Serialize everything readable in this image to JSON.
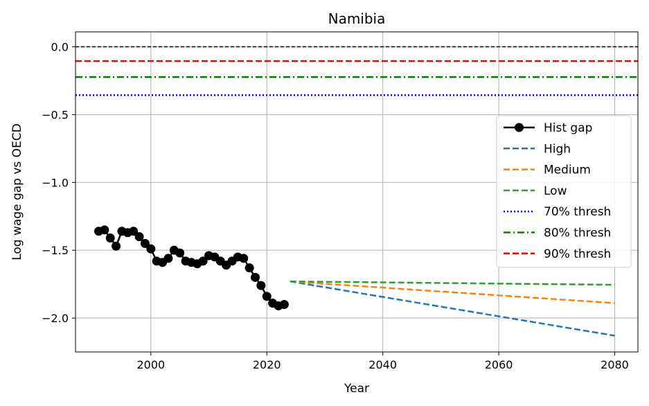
{
  "chart_data": {
    "type": "line",
    "title": "Namibia",
    "xlabel": "Year",
    "ylabel": "Log wage gap vs OECD",
    "xlim": [
      1987,
      2084
    ],
    "ylim": [
      -2.25,
      0.11
    ],
    "xticks": [
      2000,
      2020,
      2040,
      2060,
      2080
    ],
    "yticks": [
      0.0,
      -0.5,
      -1.0,
      -1.5,
      -2.0
    ],
    "xtick_labels": [
      "2000",
      "2020",
      "2040",
      "2060",
      "2080"
    ],
    "ytick_labels": [
      "0.0",
      "−0.5",
      "−1.0",
      "−1.5",
      "−2.0"
    ],
    "grid": true,
    "legend_position": "center-right",
    "legend": [
      {
        "label": "Hist gap",
        "color": "#000000",
        "style": "solid-marker"
      },
      {
        "label": "High",
        "color": "#1f77b4",
        "style": "dashed"
      },
      {
        "label": "Medium",
        "color": "#ff7f0e",
        "style": "dashed"
      },
      {
        "label": "Low",
        "color": "#2ca02c",
        "style": "dashed"
      },
      {
        "label": "70% thresh",
        "color": "#0000ff",
        "style": "dotted"
      },
      {
        "label": "80% thresh",
        "color": "#008000",
        "style": "dashdot"
      },
      {
        "label": "90% thresh",
        "color": "#ff0000",
        "style": "dashed"
      }
    ],
    "hlines": [
      {
        "y": 0.0,
        "color": "#000000",
        "style": "dashed-thin"
      },
      {
        "y": -0.105,
        "color": "#ff0000",
        "style": "dashed"
      },
      {
        "y": -0.223,
        "color": "#008000",
        "style": "dashdot"
      },
      {
        "y": -0.357,
        "color": "#0000ff",
        "style": "dotted"
      }
    ],
    "hist": {
      "x": [
        1991,
        1992,
        1993,
        1994,
        1995,
        1996,
        1997,
        1998,
        1999,
        2000,
        2001,
        2002,
        2003,
        2004,
        2005,
        2006,
        2007,
        2008,
        2009,
        2010,
        2011,
        2012,
        2013,
        2014,
        2015,
        2016,
        2017,
        2018,
        2019,
        2020,
        2021,
        2022,
        2023
      ],
      "y": [
        -1.36,
        -1.35,
        -1.41,
        -1.47,
        -1.36,
        -1.37,
        -1.36,
        -1.4,
        -1.45,
        -1.49,
        -1.58,
        -1.59,
        -1.56,
        -1.5,
        -1.52,
        -1.58,
        -1.59,
        -1.6,
        -1.58,
        -1.54,
        -1.55,
        -1.58,
        -1.61,
        -1.58,
        -1.55,
        -1.56,
        -1.63,
        -1.7,
        -1.76,
        -1.84,
        -1.89,
        -1.91,
        -1.9
      ]
    },
    "series": [
      {
        "name": "High",
        "color": "#1f77b4",
        "x": [
          2024,
          2080
        ],
        "y": [
          -1.73,
          -2.13
        ]
      },
      {
        "name": "Medium",
        "color": "#ff7f0e",
        "x": [
          2024,
          2080
        ],
        "y": [
          -1.73,
          -1.89
        ]
      },
      {
        "name": "Low",
        "color": "#2ca02c",
        "x": [
          2024,
          2080
        ],
        "y": [
          -1.73,
          -1.755
        ]
      }
    ]
  }
}
